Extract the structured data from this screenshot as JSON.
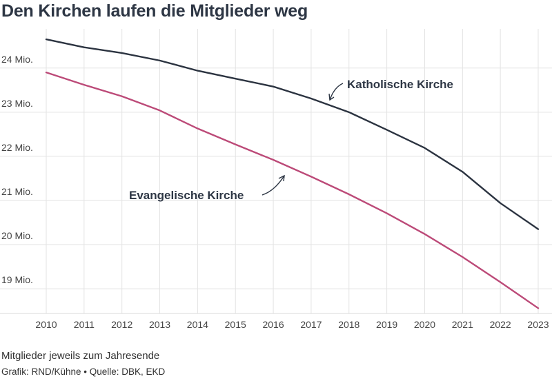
{
  "title": "Den Kirchen laufen die Mitglieder weg",
  "note": "Mitglieder jeweils zum Jahresende",
  "credit": "Grafik: RND/Kühne • Quelle: DBK, EKD",
  "colors": {
    "katholisch": "#2b3340",
    "evangelisch": "#bc4a78",
    "grid": "#e3e3e3",
    "axis": "#d9d9d9"
  },
  "chart_data": {
    "type": "line",
    "title": "Den Kirchen laufen die Mitglieder weg",
    "xlabel": "",
    "ylabel": "",
    "x": [
      2010,
      2011,
      2012,
      2013,
      2014,
      2015,
      2016,
      2017,
      2018,
      2019,
      2020,
      2021,
      2022,
      2023
    ],
    "x_tick_labels": [
      "2010",
      "2011",
      "2012",
      "2013",
      "2014",
      "2015",
      "2016",
      "2017",
      "2018",
      "2019",
      "2020",
      "2021",
      "2022",
      "2023"
    ],
    "y_ticks": [
      19,
      20,
      21,
      22,
      23,
      24
    ],
    "y_tick_labels": [
      "19 Mio.",
      "20 Mio.",
      "21 Mio.",
      "22 Mio.",
      "23 Mio.",
      "24 Mio."
    ],
    "ylim": [
      18.44,
      24.8
    ],
    "grid": true,
    "series": [
      {
        "name": "Katholische Kirche",
        "color_key": "katholisch",
        "values": [
          24.65,
          24.47,
          24.34,
          24.17,
          23.94,
          23.76,
          23.58,
          23.31,
          23.0,
          22.6,
          22.19,
          21.65,
          20.94,
          20.35
        ]
      },
      {
        "name": "Evangelische Kirche",
        "color_key": "evangelisch",
        "values": [
          23.9,
          23.62,
          23.36,
          23.04,
          22.63,
          22.27,
          21.92,
          21.54,
          21.14,
          20.71,
          20.24,
          19.72,
          19.15,
          18.56
        ]
      }
    ]
  }
}
